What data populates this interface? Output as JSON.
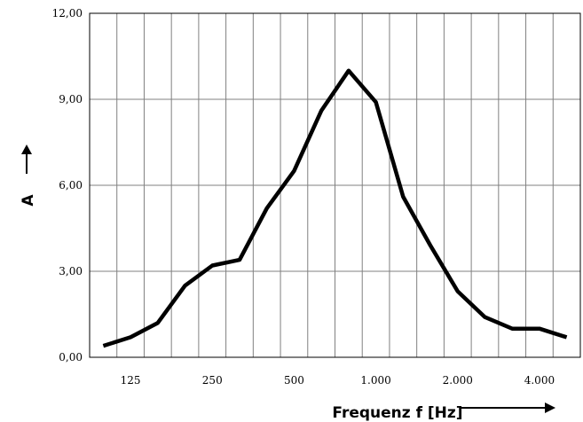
{
  "chart_data": {
    "type": "line",
    "title": "",
    "xlabel": "Frequenz f [Hz]",
    "ylabel": "A",
    "ylim": [
      0,
      12
    ],
    "y_ticks": [
      "0,00",
      "3,00",
      "6,00",
      "9,00",
      "12,00"
    ],
    "x_tick_labels": [
      "125",
      "250",
      "500",
      "1.000",
      "2.000",
      "4.000"
    ],
    "x_bands": [
      "100",
      "125",
      "160",
      "200",
      "250",
      "315",
      "400",
      "500",
      "630",
      "800",
      "1.000",
      "1.250",
      "1.600",
      "2.000",
      "2.500",
      "3.150",
      "4.000",
      "5.000"
    ],
    "series": [
      {
        "values": [
          0.4,
          0.7,
          1.2,
          2.5,
          3.2,
          3.4,
          5.2,
          6.5,
          8.6,
          10.0,
          8.9,
          5.6,
          3.9,
          2.3,
          1.4,
          1.0,
          1.0,
          0.7
        ]
      }
    ],
    "grid": true,
    "legend": "none",
    "line_color": "#000000",
    "grid_color": "#808080"
  }
}
